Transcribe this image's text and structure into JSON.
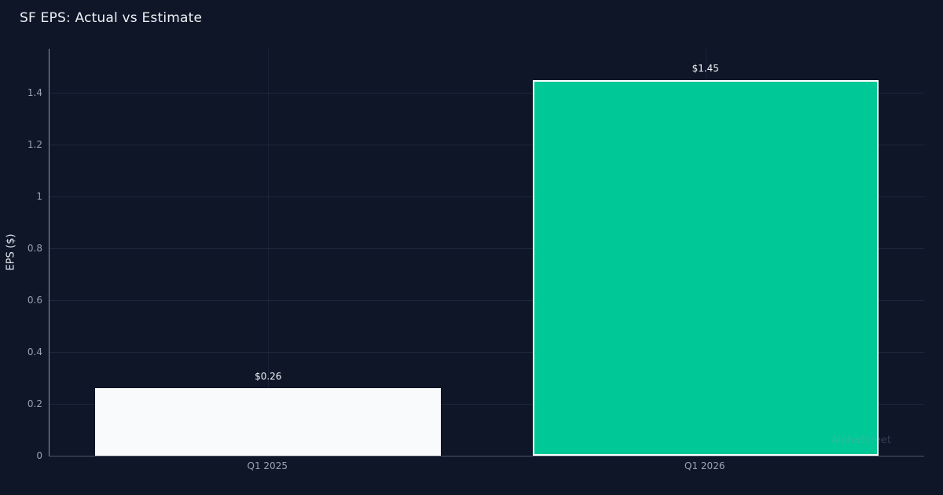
{
  "title": "SF EPS: Actual vs Estimate",
  "watermark": "AlphaStreet",
  "chart_data": {
    "type": "bar",
    "title": "SF EPS: Actual vs Estimate",
    "xlabel": "",
    "ylabel": "EPS ($)",
    "categories": [
      "Q1 2025",
      "Q1 2026"
    ],
    "series": [
      {
        "name": "EPS",
        "values": [
          0.26,
          1.45
        ]
      }
    ],
    "bar_labels": [
      "$0.26",
      "$1.45"
    ],
    "bar_colors": [
      "#f8fafc",
      "#00c896"
    ],
    "bar_border_colors": [
      "none",
      "#ffffff"
    ],
    "yticks": [
      0,
      0.2,
      0.4,
      0.6,
      0.8,
      1,
      1.2,
      1.4
    ],
    "ylim": [
      0,
      1.57
    ],
    "grid": true,
    "legend": "none",
    "background_color": "#0e1628"
  }
}
